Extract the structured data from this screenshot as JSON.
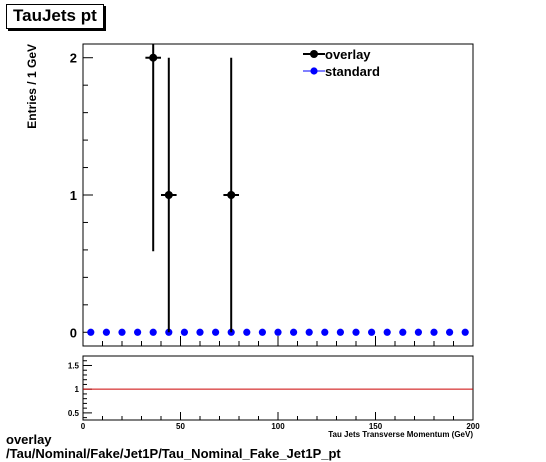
{
  "title": "TauJets pt",
  "caption": {
    "line1": "overlay",
    "line2": "/Tau/Nominal/Fake/Jet1P/Tau_Nominal_Fake_Jet1P_pt"
  },
  "chart_data": [
    {
      "type": "scatter",
      "title": "TauJets pt",
      "ylabel": "Entries / 1 GeV",
      "xlim": [
        0,
        200
      ],
      "ylim": [
        -0.1,
        2.1
      ],
      "yticks": [
        0,
        1,
        2
      ],
      "legend": "top-right",
      "series": [
        {
          "name": "overlay",
          "color": "#000000",
          "points": [
            {
              "x": 36,
              "y": 2,
              "ylo": 0.59,
              "yhi": 2.1
            },
            {
              "x": 44,
              "y": 1,
              "ylo": 0,
              "yhi": 2
            },
            {
              "x": 76,
              "y": 1,
              "ylo": 0,
              "yhi": 2
            }
          ]
        },
        {
          "name": "standard",
          "color": "#0000ff",
          "x": [
            4,
            12,
            20,
            28,
            36,
            44,
            52,
            60,
            68,
            76,
            84,
            92,
            100,
            108,
            116,
            124,
            132,
            140,
            148,
            156,
            164,
            172,
            180,
            188,
            196
          ],
          "y": [
            0,
            0,
            0,
            0,
            0,
            0,
            0,
            0,
            0,
            0,
            0,
            0,
            0,
            0,
            0,
            0,
            0,
            0,
            0,
            0,
            0,
            0,
            0,
            0,
            0
          ]
        }
      ]
    },
    {
      "type": "line",
      "xlabel": "Tau Jets Transverse Momentum (GeV)",
      "xlim": [
        0,
        200
      ],
      "ylim": [
        0.35,
        1.7
      ],
      "yticks": [
        0.5,
        1,
        1.5
      ],
      "xticks": [
        0,
        50,
        100,
        150,
        200
      ],
      "series": [
        {
          "color": "#cc0000",
          "x": [
            0,
            200
          ],
          "y": [
            1,
            1
          ]
        }
      ]
    }
  ]
}
